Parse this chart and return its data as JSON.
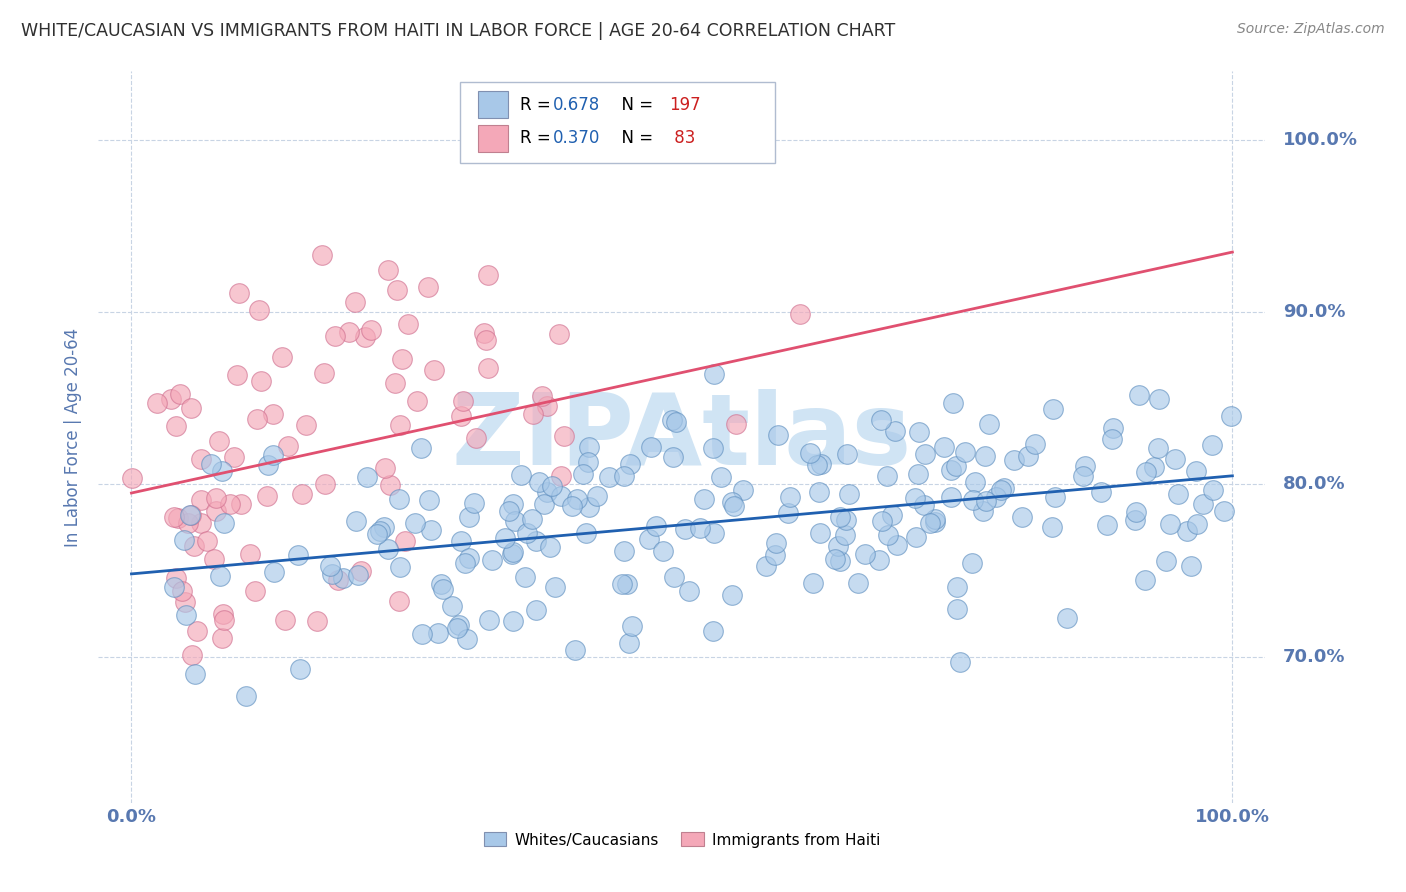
{
  "title": "WHITE/CAUCASIAN VS IMMIGRANTS FROM HAITI IN LABOR FORCE | AGE 20-64 CORRELATION CHART",
  "source": "Source: ZipAtlas.com",
  "ylabel": "In Labor Force | Age 20-64",
  "xlim": [
    -0.03,
    1.03
  ],
  "ylim": [
    0.615,
    1.04
  ],
  "yticks": [
    0.7,
    0.8,
    0.9,
    1.0
  ],
  "ytick_labels": [
    "70.0%",
    "80.0%",
    "90.0%",
    "100.0%"
  ],
  "xticks": [
    0.0,
    0.1,
    0.2,
    0.3,
    0.4,
    0.5,
    0.6,
    0.7,
    0.8,
    0.9,
    1.0
  ],
  "blue_R": 0.678,
  "blue_N": 197,
  "pink_R": 0.37,
  "pink_N": 83,
  "blue_scatter_color": "#a8c8e8",
  "pink_scatter_color": "#f4a8b8",
  "blue_edge_color": "#6090c0",
  "pink_edge_color": "#d07090",
  "blue_line_color": "#2060b0",
  "pink_line_color": "#e05070",
  "blue_legend_color": "#a8c8e8",
  "pink_legend_color": "#f4a8b8",
  "legend_R_color": "#2060b0",
  "legend_N_color": "#cc2020",
  "watermark": "ZIPAtlas",
  "watermark_color": "#d0e4f4",
  "grid_color": "#c8d4e4",
  "title_color": "#303030",
  "axis_label_color": "#5878b0",
  "tick_label_color": "#5878b0",
  "background_color": "#ffffff",
  "blue_line_start_y": 0.748,
  "blue_line_end_y": 0.805,
  "pink_line_start_y": 0.795,
  "pink_line_end_y": 0.935
}
